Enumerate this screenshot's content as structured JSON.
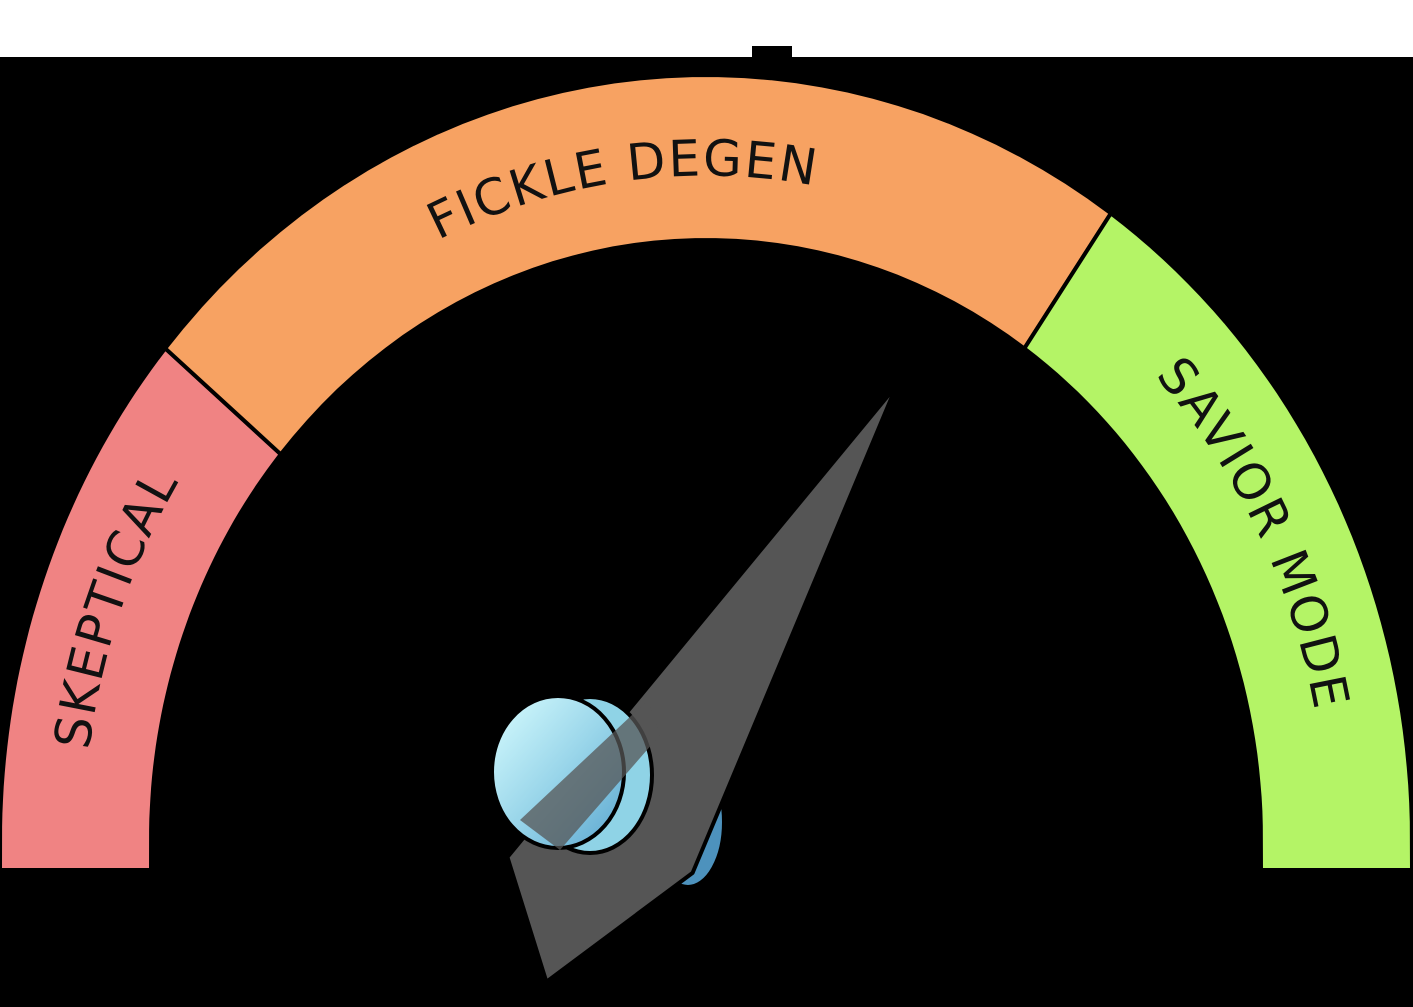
{
  "gauge": {
    "segments": [
      {
        "id": "skeptical",
        "label": "SKEPTICAL",
        "color": "#f08383",
        "from_deg": 180,
        "to_deg": 140
      },
      {
        "id": "fickle",
        "label": "FICKLE DEGEN",
        "color": "#f7a262",
        "from_deg": 140,
        "to_deg": 55
      },
      {
        "id": "savior",
        "label": "SAVIOR MODE",
        "color": "#b4f466",
        "from_deg": 55,
        "to_deg": 0
      }
    ],
    "needle": {
      "angle_deg": 58,
      "color": "#555555",
      "hub_color": "#8fd3e6",
      "hub_highlight": "#d4fcff",
      "hub_shadow": "#4d92bd"
    },
    "background": "#000000"
  }
}
